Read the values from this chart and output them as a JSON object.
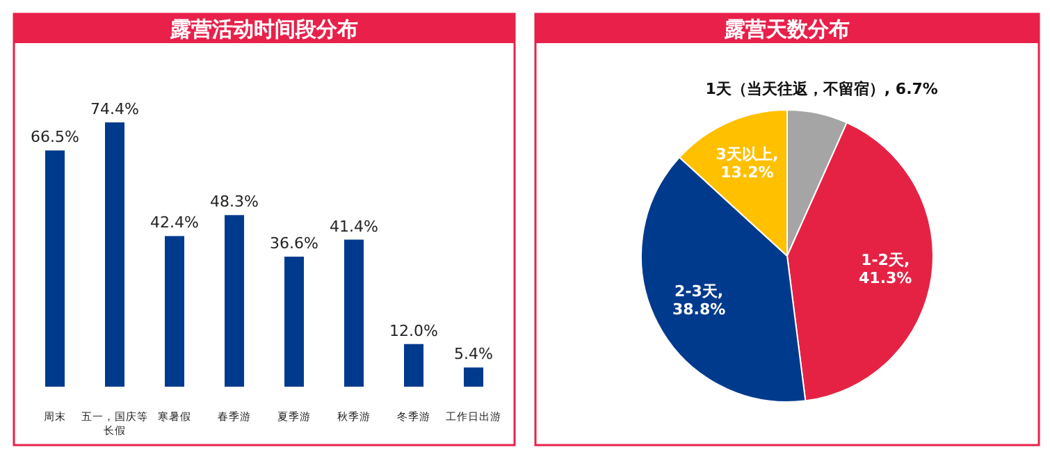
{
  "chart_data": [
    {
      "type": "bar",
      "title": "露营活动时间段分布",
      "categories": [
        "周末",
        "五一，国庆等长假",
        "寒暑假",
        "春季游",
        "夏季游",
        "秋季游",
        "冬季游",
        "工作日出游"
      ],
      "values": [
        66.5,
        74.4,
        42.4,
        48.3,
        36.6,
        41.4,
        12.0,
        5.4
      ],
      "value_labels": [
        "66.5%",
        "74.4%",
        "42.4%",
        "48.3%",
        "36.6%",
        "41.4%",
        "12.0%",
        "5.4%"
      ],
      "color": "#003a8c"
    },
    {
      "type": "pie",
      "title": "露营天数分布",
      "categories": [
        "1天（当天往返，不留宿）",
        "1-2天",
        "2-3天",
        "3天以上"
      ],
      "values": [
        6.7,
        41.3,
        38.8,
        13.2
      ],
      "value_labels": [
        ", 6.7%",
        ", 41.3%",
        ", 38.8%",
        ", 13.2%"
      ],
      "colors": [
        "#a5a5a5",
        "#e62244",
        "#003a8c",
        "#ffc000"
      ]
    }
  ]
}
